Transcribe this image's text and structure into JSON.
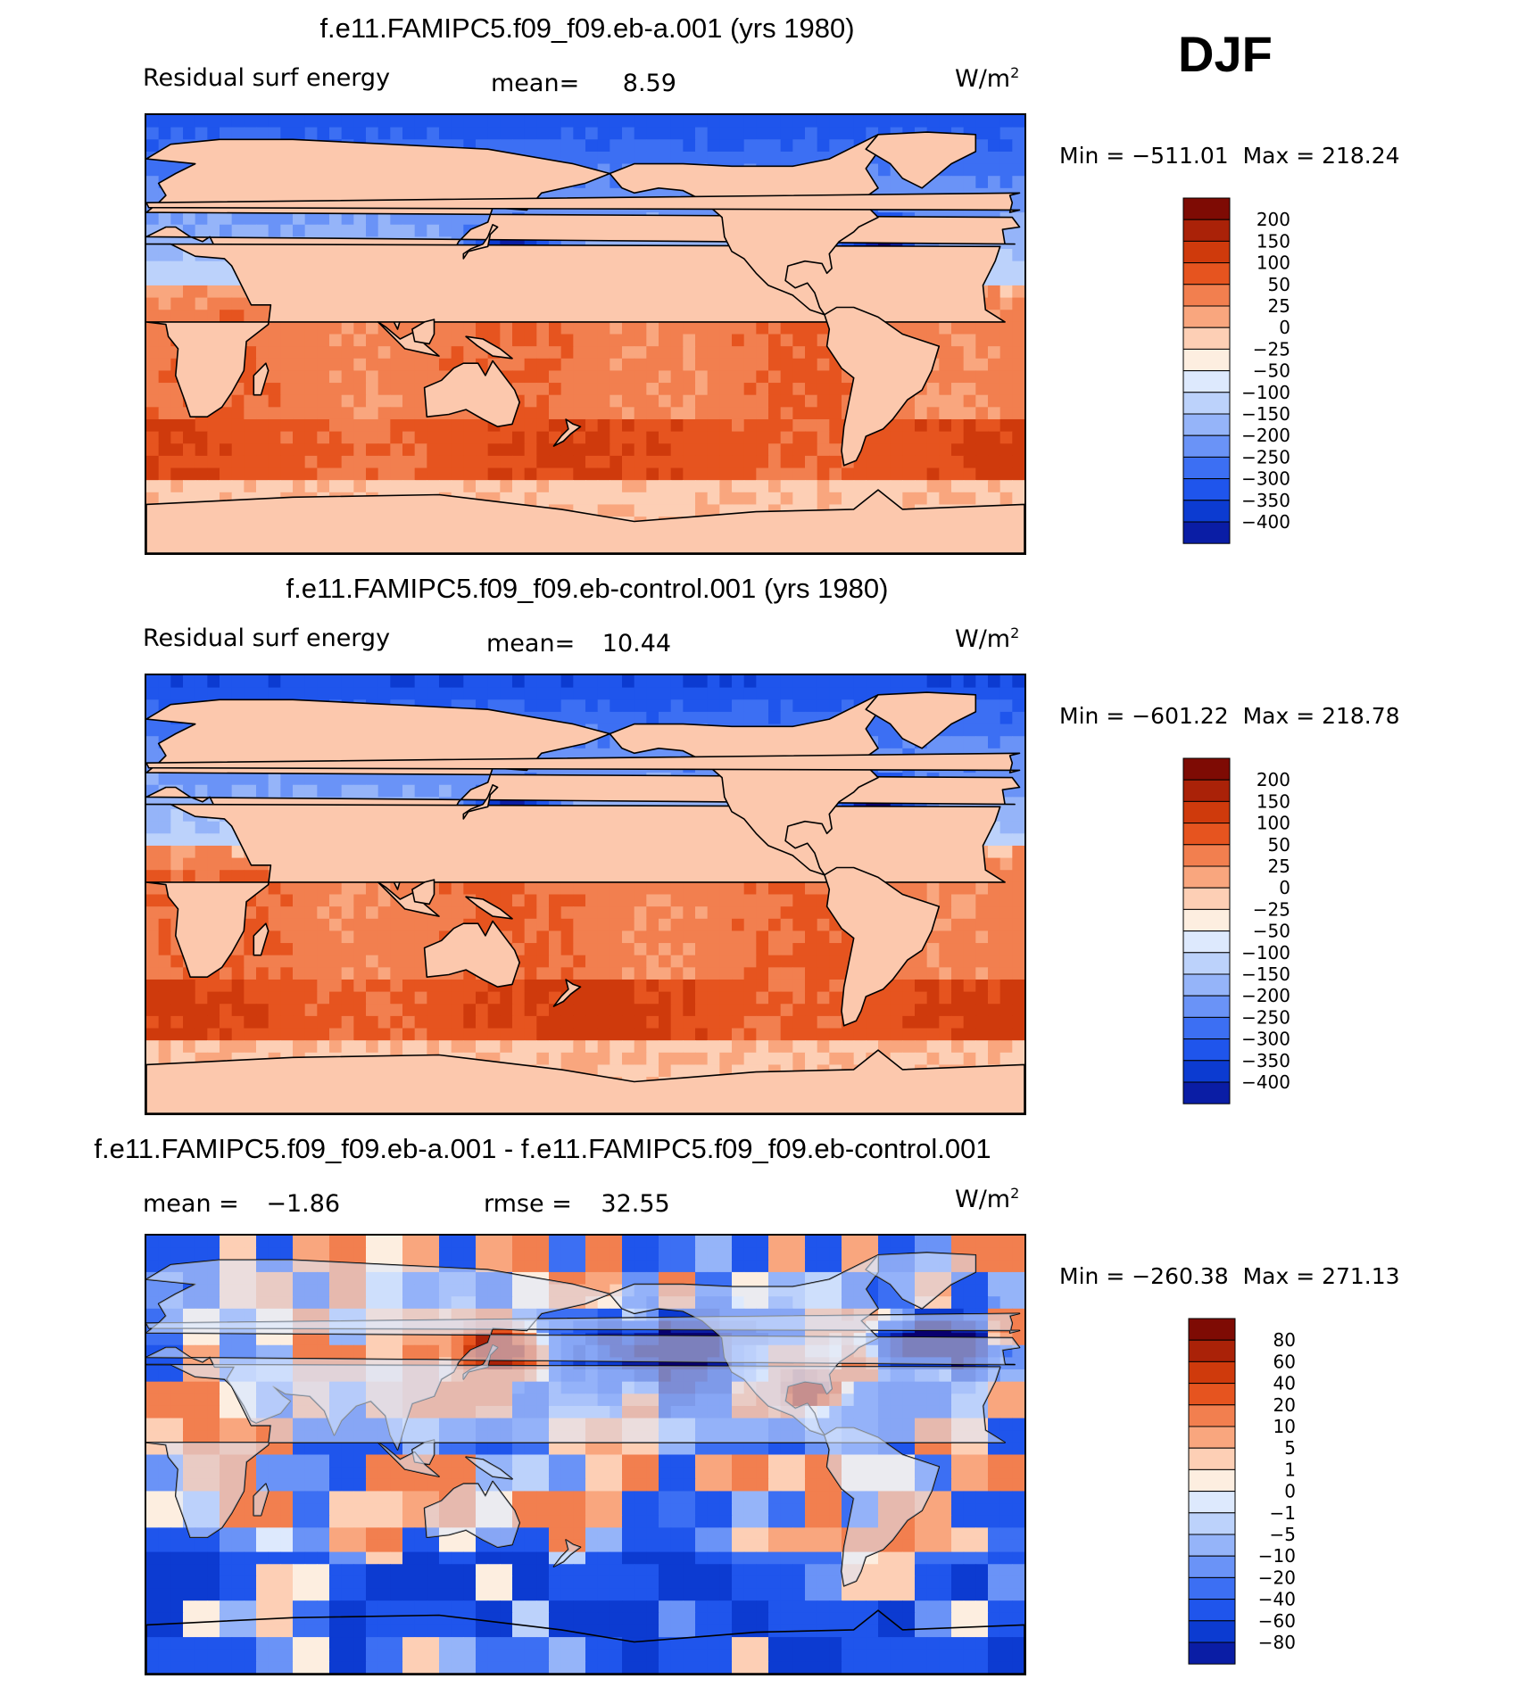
{
  "season": "DJF",
  "colors": {
    "full_scale": [
      "#08006e",
      "#0a1da5",
      "#0c3bd1",
      "#1f55ec",
      "#3c6ff3",
      "#6a93f7",
      "#95b4f9",
      "#bcd2fb",
      "#dde9fd",
      "#fdeee0",
      "#fdcfb5",
      "#f9a67e",
      "#f27f4f",
      "#e6541f",
      "#cf3a0c",
      "#aa2208",
      "#7e0b04"
    ],
    "diff_scale": [
      "#08006e",
      "#0a1da5",
      "#0c3bd1",
      "#1f55ec",
      "#3c6ff3",
      "#6a93f7",
      "#95b4f9",
      "#bcd2fb",
      "#dde9fd",
      "#fdeee0",
      "#fdcfb5",
      "#f9a67e",
      "#f27f4f",
      "#e6541f",
      "#cf3a0c",
      "#aa2208",
      "#7e0b04"
    ],
    "land": "#fcc8ad",
    "coast": "#000000"
  },
  "panels": [
    {
      "title": "f.e11.FAMIPC5.f09_f09.eb-a.001 (yrs 1980)",
      "left_label": "Residual surf energy",
      "stat_label": "mean=",
      "stat_value": "8.59",
      "units_base": "W/m",
      "units_exp": "2",
      "min_label": "Min",
      "min_value": "−511.01",
      "max_label": "Max",
      "max_value": "218.24"
    },
    {
      "title": "f.e11.FAMIPC5.f09_f09.eb-control.001 (yrs 1980)",
      "left_label": "Residual surf energy",
      "stat_label": "mean=",
      "stat_value": "10.44",
      "units_base": "W/m",
      "units_exp": "2",
      "min_label": "Min",
      "min_value": "−601.22",
      "max_label": "Max",
      "max_value": "218.78"
    },
    {
      "title": "f.e11.FAMIPC5.f09_f09.eb-a.001 - f.e11.FAMIPC5.f09_f09.eb-control.001",
      "left_label": "mean =",
      "left_value": "−1.86",
      "stat_label": "rmse =",
      "stat_value": "32.55",
      "units_base": "W/m",
      "units_exp": "2",
      "min_label": "Min",
      "min_value": "−260.38",
      "max_label": "Max",
      "max_value": "271.13"
    }
  ],
  "chart_data": [
    {
      "type": "heatmap",
      "title": "f.e11.FAMIPC5.f09_f09.eb-a.001 (yrs 1980)",
      "variable": "Residual surf energy",
      "units": "W/m2",
      "season": "DJF",
      "mean": 8.59,
      "min": -511.01,
      "max": 218.24,
      "colorbar_levels": [
        200,
        150,
        100,
        50,
        25,
        0,
        -25,
        -50,
        -100,
        -150,
        -200,
        -250,
        -300,
        -350,
        -400
      ],
      "colorbar_labels": [
        "200",
        "150",
        "100",
        "50",
        "25",
        "0",
        "−25",
        "−50",
        "−100",
        "−150",
        "−200",
        "−250",
        "−300",
        "−350",
        "−400"
      ]
    },
    {
      "type": "heatmap",
      "title": "f.e11.FAMIPC5.f09_f09.eb-control.001 (yrs 1980)",
      "variable": "Residual surf energy",
      "units": "W/m2",
      "season": "DJF",
      "mean": 10.44,
      "min": -601.22,
      "max": 218.78,
      "colorbar_levels": [
        200,
        150,
        100,
        50,
        25,
        0,
        -25,
        -50,
        -100,
        -150,
        -200,
        -250,
        -300,
        -350,
        -400
      ],
      "colorbar_labels": [
        "200",
        "150",
        "100",
        "50",
        "25",
        "0",
        "−25",
        "−50",
        "−100",
        "−150",
        "−200",
        "−250",
        "−300",
        "−350",
        "−400"
      ]
    },
    {
      "type": "heatmap",
      "title": "f.e11.FAMIPC5.f09_f09.eb-a.001 - f.e11.FAMIPC5.f09_f09.eb-control.001",
      "units": "W/m2",
      "season": "DJF",
      "mean": -1.86,
      "rmse": 32.55,
      "min": -260.38,
      "max": 271.13,
      "colorbar_levels": [
        80,
        60,
        40,
        20,
        10,
        5,
        1,
        0,
        -1,
        -5,
        -10,
        -20,
        -40,
        -60,
        -80
      ],
      "colorbar_labels": [
        "80",
        "60",
        "40",
        "20",
        "10",
        "5",
        "1",
        "0",
        "−1",
        "−5",
        "−10",
        "−20",
        "−40",
        "−60",
        "−80"
      ]
    }
  ]
}
